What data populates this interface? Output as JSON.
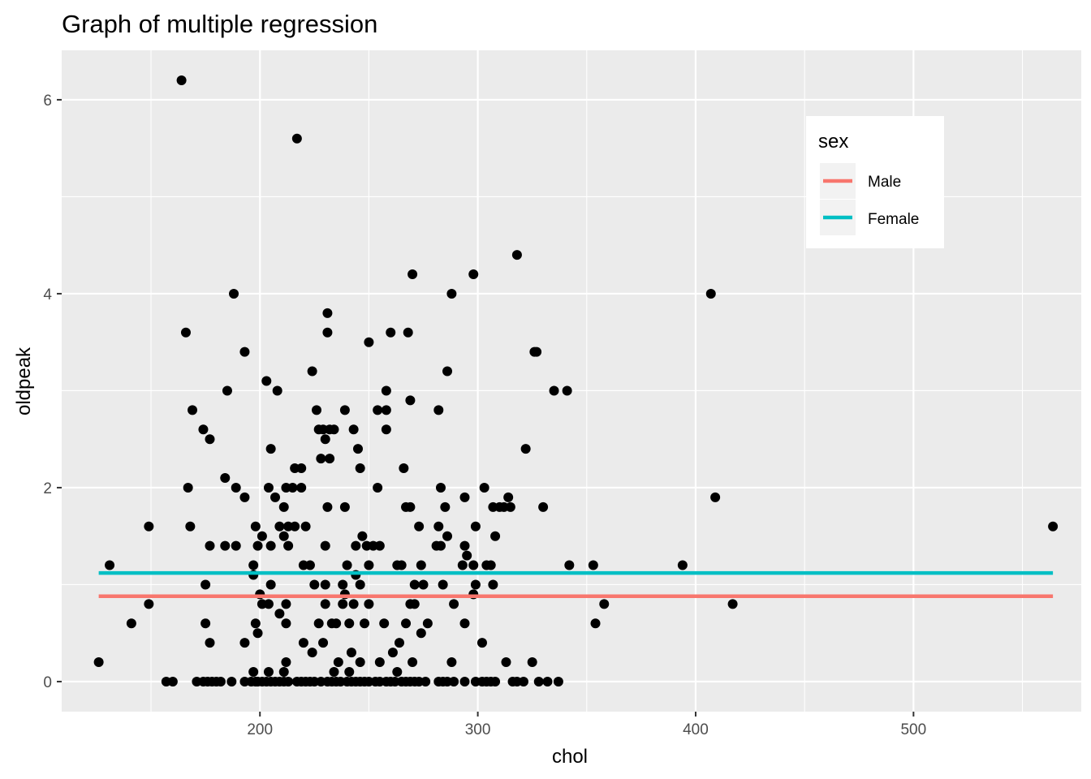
{
  "chart_data": {
    "type": "scatter",
    "title": "Graph of multiple regression",
    "xlabel": "chol",
    "ylabel": "oldpeak",
    "xlim": [
      109,
      577
    ],
    "ylim": [
      -0.31,
      6.51
    ],
    "x_ticks": [
      200,
      300,
      400,
      500
    ],
    "y_ticks": [
      0,
      2,
      4,
      6
    ],
    "grid": true,
    "legend": {
      "title": "sex",
      "position": "top-right"
    },
    "colors": {
      "Male": "#F8766D",
      "Female": "#00BFC4",
      "points": "#000000",
      "panel": "#EBEBEB",
      "grid": "#FFFFFF"
    },
    "lines": [
      {
        "name": "Male",
        "x": [
          126,
          564
        ],
        "y": [
          0.88,
          0.88
        ]
      },
      {
        "name": "Female",
        "x": [
          126,
          564
        ],
        "y": [
          1.12,
          1.12
        ]
      }
    ],
    "points": [
      [
        164,
        6.2
      ],
      [
        217,
        5.6
      ],
      [
        318,
        4.4
      ],
      [
        270,
        4.2
      ],
      [
        298,
        4.2
      ],
      [
        188,
        4.0
      ],
      [
        288,
        4.0
      ],
      [
        407,
        4.0
      ],
      [
        231,
        3.8
      ],
      [
        166,
        3.6
      ],
      [
        231,
        3.6
      ],
      [
        260,
        3.6
      ],
      [
        268,
        3.6
      ],
      [
        250,
        3.5
      ],
      [
        193,
        3.4
      ],
      [
        326,
        3.4
      ],
      [
        327,
        3.4
      ],
      [
        203,
        3.1
      ],
      [
        224,
        3.2
      ],
      [
        286,
        3.2
      ],
      [
        185,
        3.0
      ],
      [
        208,
        3.0
      ],
      [
        258,
        3.0
      ],
      [
        335,
        3.0
      ],
      [
        341,
        3.0
      ],
      [
        269,
        2.9
      ],
      [
        169,
        2.8
      ],
      [
        226,
        2.8
      ],
      [
        239,
        2.8
      ],
      [
        254,
        2.8
      ],
      [
        258,
        2.8
      ],
      [
        282,
        2.8
      ],
      [
        174,
        2.6
      ],
      [
        227,
        2.6
      ],
      [
        229,
        2.6
      ],
      [
        232,
        2.6
      ],
      [
        234,
        2.6
      ],
      [
        243,
        2.6
      ],
      [
        258,
        2.6
      ],
      [
        177,
        2.5
      ],
      [
        230,
        2.5
      ],
      [
        205,
        2.4
      ],
      [
        245,
        2.4
      ],
      [
        322,
        2.4
      ],
      [
        228,
        2.3
      ],
      [
        232,
        2.3
      ],
      [
        216,
        2.2
      ],
      [
        219,
        2.2
      ],
      [
        246,
        2.2
      ],
      [
        266,
        2.2
      ],
      [
        184,
        2.1
      ],
      [
        167,
        2.0
      ],
      [
        189,
        2.0
      ],
      [
        204,
        2.0
      ],
      [
        212,
        2.0
      ],
      [
        215,
        2.0
      ],
      [
        219,
        2.0
      ],
      [
        254,
        2.0
      ],
      [
        283,
        2.0
      ],
      [
        303,
        2.0
      ],
      [
        193,
        1.9
      ],
      [
        207,
        1.9
      ],
      [
        294,
        1.9
      ],
      [
        314,
        1.9
      ],
      [
        409,
        1.9
      ],
      [
        211,
        1.8
      ],
      [
        231,
        1.8
      ],
      [
        239,
        1.8
      ],
      [
        267,
        1.8
      ],
      [
        269,
        1.8
      ],
      [
        285,
        1.8
      ],
      [
        307,
        1.8
      ],
      [
        310,
        1.8
      ],
      [
        312,
        1.8
      ],
      [
        315,
        1.8
      ],
      [
        330,
        1.8
      ],
      [
        149,
        1.6
      ],
      [
        168,
        1.6
      ],
      [
        198,
        1.6
      ],
      [
        209,
        1.6
      ],
      [
        213,
        1.6
      ],
      [
        216,
        1.6
      ],
      [
        221,
        1.6
      ],
      [
        273,
        1.6
      ],
      [
        282,
        1.6
      ],
      [
        299,
        1.6
      ],
      [
        564,
        1.6
      ],
      [
        201,
        1.5
      ],
      [
        211,
        1.5
      ],
      [
        247,
        1.5
      ],
      [
        286,
        1.5
      ],
      [
        308,
        1.5
      ],
      [
        177,
        1.4
      ],
      [
        184,
        1.4
      ],
      [
        189,
        1.4
      ],
      [
        199,
        1.4
      ],
      [
        205,
        1.4
      ],
      [
        213,
        1.4
      ],
      [
        230,
        1.4
      ],
      [
        244,
        1.4
      ],
      [
        249,
        1.4
      ],
      [
        252,
        1.4
      ],
      [
        255,
        1.4
      ],
      [
        281,
        1.4
      ],
      [
        283,
        1.4
      ],
      [
        294,
        1.4
      ],
      [
        295,
        1.3
      ],
      [
        131,
        1.2
      ],
      [
        197,
        1.2
      ],
      [
        220,
        1.2
      ],
      [
        223,
        1.2
      ],
      [
        240,
        1.2
      ],
      [
        250,
        1.2
      ],
      [
        263,
        1.2
      ],
      [
        265,
        1.2
      ],
      [
        274,
        1.2
      ],
      [
        293,
        1.2
      ],
      [
        298,
        1.2
      ],
      [
        304,
        1.2
      ],
      [
        306,
        1.2
      ],
      [
        342,
        1.2
      ],
      [
        353,
        1.2
      ],
      [
        394,
        1.2
      ],
      [
        197,
        1.1
      ],
      [
        244,
        1.1
      ],
      [
        175,
        1.0
      ],
      [
        205,
        1.0
      ],
      [
        225,
        1.0
      ],
      [
        230,
        1.0
      ],
      [
        238,
        1.0
      ],
      [
        246,
        1.0
      ],
      [
        271,
        1.0
      ],
      [
        275,
        1.0
      ],
      [
        284,
        1.0
      ],
      [
        299,
        1.0
      ],
      [
        307,
        1.0
      ],
      [
        200,
        0.9
      ],
      [
        239,
        0.9
      ],
      [
        298,
        0.9
      ],
      [
        149,
        0.8
      ],
      [
        201,
        0.8
      ],
      [
        204,
        0.8
      ],
      [
        212,
        0.8
      ],
      [
        230,
        0.8
      ],
      [
        238,
        0.8
      ],
      [
        243,
        0.8
      ],
      [
        250,
        0.8
      ],
      [
        269,
        0.8
      ],
      [
        271,
        0.8
      ],
      [
        289,
        0.8
      ],
      [
        358,
        0.8
      ],
      [
        417,
        0.8
      ],
      [
        209,
        0.7
      ],
      [
        141,
        0.6
      ],
      [
        175,
        0.6
      ],
      [
        198,
        0.6
      ],
      [
        212,
        0.6
      ],
      [
        227,
        0.6
      ],
      [
        233,
        0.6
      ],
      [
        235,
        0.6
      ],
      [
        241,
        0.6
      ],
      [
        248,
        0.6
      ],
      [
        257,
        0.6
      ],
      [
        267,
        0.6
      ],
      [
        277,
        0.6
      ],
      [
        294,
        0.6
      ],
      [
        354,
        0.6
      ],
      [
        199,
        0.5
      ],
      [
        274,
        0.5
      ],
      [
        177,
        0.4
      ],
      [
        193,
        0.4
      ],
      [
        220,
        0.4
      ],
      [
        229,
        0.4
      ],
      [
        264,
        0.4
      ],
      [
        302,
        0.4
      ],
      [
        224,
        0.3
      ],
      [
        242,
        0.3
      ],
      [
        261,
        0.3
      ],
      [
        126,
        0.2
      ],
      [
        212,
        0.2
      ],
      [
        236,
        0.2
      ],
      [
        246,
        0.2
      ],
      [
        255,
        0.2
      ],
      [
        270,
        0.2
      ],
      [
        288,
        0.2
      ],
      [
        313,
        0.2
      ],
      [
        325,
        0.2
      ],
      [
        197,
        0.1
      ],
      [
        204,
        0.1
      ],
      [
        211,
        0.1
      ],
      [
        234,
        0.1
      ],
      [
        241,
        0.1
      ],
      [
        263,
        0.1
      ],
      [
        157,
        0.0
      ],
      [
        160,
        0.0
      ],
      [
        171,
        0.0
      ],
      [
        174,
        0.0
      ],
      [
        176,
        0.0
      ],
      [
        178,
        0.0
      ],
      [
        180,
        0.0
      ],
      [
        182,
        0.0
      ],
      [
        187,
        0.0
      ],
      [
        193,
        0.0
      ],
      [
        196,
        0.0
      ],
      [
        198,
        0.0
      ],
      [
        199,
        0.0
      ],
      [
        201,
        0.0
      ],
      [
        203,
        0.0
      ],
      [
        205,
        0.0
      ],
      [
        207,
        0.0
      ],
      [
        209,
        0.0
      ],
      [
        211,
        0.0
      ],
      [
        213,
        0.0
      ],
      [
        217,
        0.0
      ],
      [
        219,
        0.0
      ],
      [
        221,
        0.0
      ],
      [
        223,
        0.0
      ],
      [
        225,
        0.0
      ],
      [
        228,
        0.0
      ],
      [
        231,
        0.0
      ],
      [
        233,
        0.0
      ],
      [
        235,
        0.0
      ],
      [
        237,
        0.0
      ],
      [
        240,
        0.0
      ],
      [
        242,
        0.0
      ],
      [
        244,
        0.0
      ],
      [
        246,
        0.0
      ],
      [
        248,
        0.0
      ],
      [
        250,
        0.0
      ],
      [
        253,
        0.0
      ],
      [
        255,
        0.0
      ],
      [
        258,
        0.0
      ],
      [
        260,
        0.0
      ],
      [
        262,
        0.0
      ],
      [
        265,
        0.0
      ],
      [
        267,
        0.0
      ],
      [
        269,
        0.0
      ],
      [
        271,
        0.0
      ],
      [
        273,
        0.0
      ],
      [
        276,
        0.0
      ],
      [
        282,
        0.0
      ],
      [
        284,
        0.0
      ],
      [
        286,
        0.0
      ],
      [
        289,
        0.0
      ],
      [
        294,
        0.0
      ],
      [
        299,
        0.0
      ],
      [
        302,
        0.0
      ],
      [
        304,
        0.0
      ],
      [
        306,
        0.0
      ],
      [
        308,
        0.0
      ],
      [
        316,
        0.0
      ],
      [
        318,
        0.0
      ],
      [
        321,
        0.0
      ],
      [
        328,
        0.0
      ],
      [
        332,
        0.0
      ],
      [
        337,
        0.0
      ]
    ]
  }
}
